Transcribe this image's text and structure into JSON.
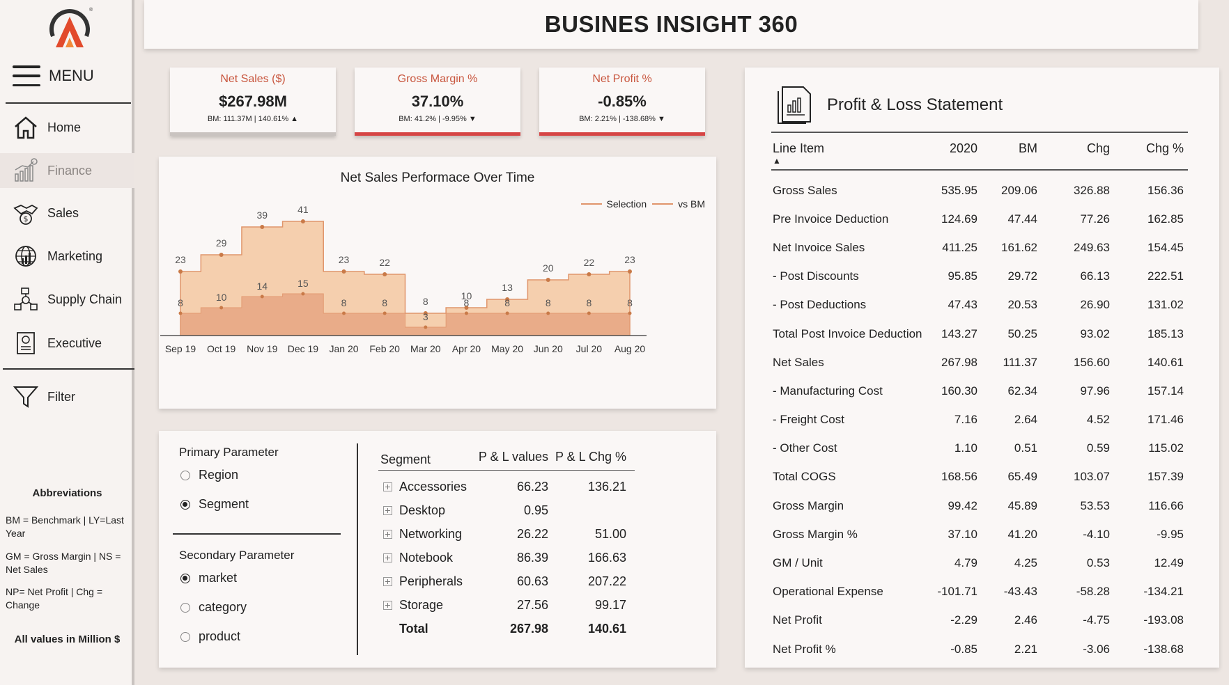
{
  "app": {
    "title": "BUSINES INSIGHT 360",
    "menu_label": "MENU"
  },
  "sidebar": {
    "items": [
      {
        "label": "Home",
        "icon": "home-icon"
      },
      {
        "label": "Finance",
        "icon": "finance-chart-icon"
      },
      {
        "label": "Sales",
        "icon": "handshake-dollar-icon"
      },
      {
        "label": "Marketing",
        "icon": "globe-chart-icon"
      },
      {
        "label": "Supply Chain",
        "icon": "supply-chain-icon"
      },
      {
        "label": "Executive",
        "icon": "executive-report-icon"
      }
    ],
    "filter_label": "Filter",
    "abbreviations": {
      "title": "Abbreviations",
      "lines": [
        "BM = Benchmark | LY=Last Year",
        "GM = Gross Margin | NS = Net Sales",
        "NP= Net Profit | Chg = Change"
      ],
      "note": "All values in Million $"
    }
  },
  "kpis": [
    {
      "title": "Net Sales ($)",
      "value": "$267.98M",
      "sub": "BM: 111.37M | 140.61% ▲",
      "bar_color": "#c9c3c0"
    },
    {
      "title": "Gross Margin %",
      "value": "37.10%",
      "sub": "BM: 41.2% | -9.95% ▼",
      "bar_color": "#d64545"
    },
    {
      "title": "Net Profit %",
      "value": "-0.85%",
      "sub": "BM: 2.21% | -138.68% ▼",
      "bar_color": "#d64545"
    }
  ],
  "chart_data": {
    "type": "area",
    "title": "Net Sales Performace Over Time",
    "categories": [
      "Sep 19",
      "Oct 19",
      "Nov 19",
      "Dec 19",
      "Jan 20",
      "Feb 20",
      "Mar 20",
      "Apr 20",
      "May 20",
      "Jun 20",
      "Jul 20",
      "Aug 20"
    ],
    "series": [
      {
        "name": "Selection",
        "values": [
          23,
          29,
          39,
          41,
          23,
          22,
          8,
          10,
          13,
          20,
          22,
          23
        ]
      },
      {
        "name": "vs BM",
        "values": [
          8,
          10,
          14,
          15,
          8,
          8,
          3,
          8,
          8,
          8,
          8,
          8
        ]
      }
    ],
    "ylim": [
      0,
      50
    ],
    "legend_position": "top-right",
    "grid": false
  },
  "parameters": {
    "primary_label": "Primary Parameter",
    "primary_options": [
      {
        "label": "Region",
        "selected": false
      },
      {
        "label": "Segment",
        "selected": true
      }
    ],
    "secondary_label": "Secondary Parameter",
    "secondary_options": [
      {
        "label": "market",
        "selected": true
      },
      {
        "label": "category",
        "selected": false
      },
      {
        "label": "product",
        "selected": false
      }
    ]
  },
  "segment_table": {
    "headers": [
      "Segment",
      "P & L values",
      "P & L Chg %"
    ],
    "rows": [
      [
        "Accessories",
        "66.23",
        "136.21"
      ],
      [
        "Desktop",
        "0.95",
        ""
      ],
      [
        "Networking",
        "26.22",
        "51.00"
      ],
      [
        "Notebook",
        "86.39",
        "166.63"
      ],
      [
        "Peripherals",
        "60.63",
        "207.22"
      ],
      [
        "Storage",
        "27.56",
        "99.17"
      ]
    ],
    "total": [
      "Total",
      "267.98",
      "140.61"
    ]
  },
  "pl": {
    "title": "Profit & Loss Statement",
    "headers": [
      "Line Item",
      "2020",
      "BM",
      "Chg",
      "Chg %"
    ],
    "sort_indicator": "▲",
    "rows": [
      [
        "Gross Sales",
        "535.95",
        "209.06",
        "326.88",
        "156.36"
      ],
      [
        "Pre Invoice Deduction",
        "124.69",
        "47.44",
        "77.26",
        "162.85"
      ],
      [
        "Net Invoice Sales",
        "411.25",
        "161.62",
        "249.63",
        "154.45"
      ],
      [
        "- Post Discounts",
        "95.85",
        "29.72",
        "66.13",
        "222.51"
      ],
      [
        "- Post Deductions",
        "47.43",
        "20.53",
        "26.90",
        "131.02"
      ],
      [
        "Total Post Invoice Deduction",
        "143.27",
        "50.25",
        "93.02",
        "185.13"
      ],
      [
        "Net Sales",
        "267.98",
        "111.37",
        "156.60",
        "140.61"
      ],
      [
        "- Manufacturing Cost",
        "160.30",
        "62.34",
        "97.96",
        "157.14"
      ],
      [
        "- Freight Cost",
        "7.16",
        "2.64",
        "4.52",
        "171.46"
      ],
      [
        "- Other Cost",
        "1.10",
        "0.51",
        "0.59",
        "115.02"
      ],
      [
        "Total COGS",
        "168.56",
        "65.49",
        "103.07",
        "157.39"
      ],
      [
        "Gross Margin",
        "99.42",
        "45.89",
        "53.53",
        "116.66"
      ],
      [
        "Gross Margin %",
        "37.10",
        "41.20",
        "-4.10",
        "-9.95"
      ],
      [
        "GM / Unit",
        "4.79",
        "4.25",
        "0.53",
        "12.49"
      ],
      [
        "Operational Expense",
        "-101.71",
        "-43.43",
        "-58.28",
        "-134.21"
      ],
      [
        "Net Profit",
        "-2.29",
        "2.46",
        "-4.75",
        "-193.08"
      ],
      [
        "Net Profit %",
        "-0.85",
        "2.21",
        "-3.06",
        "-138.68"
      ]
    ]
  },
  "colors": {
    "accent": "#c8553d",
    "negative": "#d64545",
    "area_selection": "#f5cfae",
    "area_bm": "#e8a985",
    "line": "#e0956b",
    "point": "#c97a48"
  }
}
